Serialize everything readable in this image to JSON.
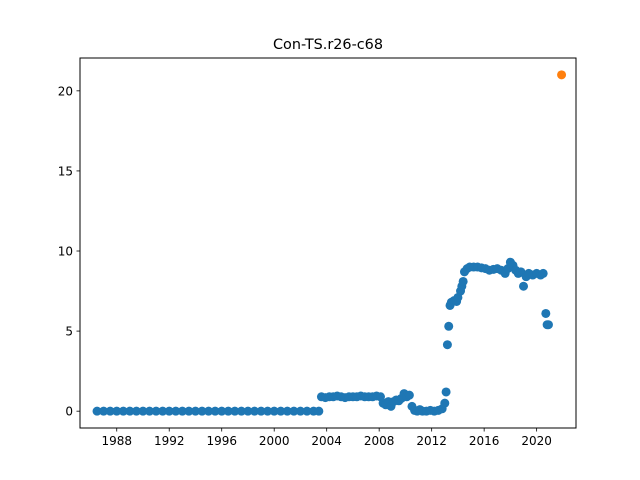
{
  "chart_data": {
    "type": "scatter",
    "title": "Con-TS.r26-c68",
    "xlabel": "",
    "ylabel": "",
    "xlim": [
      1985.2,
      2023.0
    ],
    "ylim": [
      -1.05,
      22.05
    ],
    "x_ticks": [
      1988,
      1992,
      1996,
      2000,
      2004,
      2008,
      2012,
      2016,
      2020
    ],
    "x_tick_labels": [
      "1988",
      "1992",
      "1996",
      "2000",
      "2004",
      "2008",
      "2012",
      "2016",
      "2020"
    ],
    "y_ticks": [
      0,
      5,
      10,
      15,
      20
    ],
    "y_tick_labels": [
      "0",
      "5",
      "10",
      "15",
      "20"
    ],
    "grid": false,
    "series": [
      {
        "color": "#1f77b4",
        "points": [
          [
            1986.5,
            0.0
          ],
          [
            1987.0,
            0.0
          ],
          [
            1987.5,
            0.0
          ],
          [
            1988.0,
            0.0
          ],
          [
            1988.5,
            0.0
          ],
          [
            1989.0,
            0.0
          ],
          [
            1989.5,
            0.0
          ],
          [
            1990.0,
            0.0
          ],
          [
            1990.5,
            0.0
          ],
          [
            1991.0,
            0.0
          ],
          [
            1991.5,
            0.0
          ],
          [
            1992.0,
            0.0
          ],
          [
            1992.5,
            0.0
          ],
          [
            1993.0,
            0.0
          ],
          [
            1993.5,
            0.0
          ],
          [
            1994.0,
            0.0
          ],
          [
            1994.5,
            0.0
          ],
          [
            1995.0,
            0.0
          ],
          [
            1995.5,
            0.0
          ],
          [
            1996.0,
            0.0
          ],
          [
            1996.5,
            0.0
          ],
          [
            1997.0,
            0.0
          ],
          [
            1997.5,
            0.0
          ],
          [
            1998.0,
            0.0
          ],
          [
            1998.5,
            0.0
          ],
          [
            1999.0,
            0.0
          ],
          [
            1999.5,
            0.0
          ],
          [
            2000.0,
            0.0
          ],
          [
            2000.5,
            0.0
          ],
          [
            2001.0,
            0.0
          ],
          [
            2001.5,
            0.0
          ],
          [
            2002.0,
            0.0
          ],
          [
            2002.5,
            0.0
          ],
          [
            2003.0,
            0.0
          ],
          [
            2003.4,
            0.0
          ],
          [
            2003.6,
            0.9
          ],
          [
            2003.9,
            0.85
          ],
          [
            2004.2,
            0.9
          ],
          [
            2004.5,
            0.9
          ],
          [
            2004.8,
            0.95
          ],
          [
            2005.1,
            0.9
          ],
          [
            2005.4,
            0.85
          ],
          [
            2005.7,
            0.9
          ],
          [
            2006.0,
            0.9
          ],
          [
            2006.3,
            0.9
          ],
          [
            2006.6,
            0.95
          ],
          [
            2006.9,
            0.9
          ],
          [
            2007.2,
            0.9
          ],
          [
            2007.5,
            0.9
          ],
          [
            2007.8,
            0.95
          ],
          [
            2008.1,
            0.9
          ],
          [
            2008.3,
            0.5
          ],
          [
            2008.5,
            0.4
          ],
          [
            2008.7,
            0.6
          ],
          [
            2008.9,
            0.3
          ],
          [
            2009.1,
            0.6
          ],
          [
            2009.3,
            0.7
          ],
          [
            2009.5,
            0.65
          ],
          [
            2009.7,
            0.8
          ],
          [
            2009.9,
            1.1
          ],
          [
            2010.1,
            0.9
          ],
          [
            2010.3,
            1.0
          ],
          [
            2010.5,
            0.3
          ],
          [
            2010.7,
            0.05
          ],
          [
            2010.9,
            0.0
          ],
          [
            2011.1,
            0.1
          ],
          [
            2011.3,
            0.0
          ],
          [
            2011.6,
            0.0
          ],
          [
            2011.9,
            0.05
          ],
          [
            2012.2,
            0.0
          ],
          [
            2012.5,
            0.05
          ],
          [
            2012.8,
            0.15
          ],
          [
            2013.0,
            0.5
          ],
          [
            2013.1,
            1.2
          ],
          [
            2013.2,
            4.15
          ],
          [
            2013.3,
            5.3
          ],
          [
            2013.4,
            6.6
          ],
          [
            2013.5,
            6.8
          ],
          [
            2013.7,
            6.9
          ],
          [
            2013.9,
            6.85
          ],
          [
            2014.0,
            7.1
          ],
          [
            2014.2,
            7.5
          ],
          [
            2014.3,
            7.8
          ],
          [
            2014.4,
            8.1
          ],
          [
            2014.5,
            8.7
          ],
          [
            2014.7,
            8.9
          ],
          [
            2014.9,
            9.0
          ],
          [
            2015.2,
            9.0
          ],
          [
            2015.5,
            9.0
          ],
          [
            2015.8,
            8.95
          ],
          [
            2016.1,
            8.9
          ],
          [
            2016.4,
            8.8
          ],
          [
            2016.7,
            8.85
          ],
          [
            2017.0,
            8.9
          ],
          [
            2017.3,
            8.8
          ],
          [
            2017.6,
            8.6
          ],
          [
            2017.8,
            8.9
          ],
          [
            2018.0,
            9.3
          ],
          [
            2018.2,
            9.1
          ],
          [
            2018.4,
            8.8
          ],
          [
            2018.6,
            8.6
          ],
          [
            2018.8,
            8.7
          ],
          [
            2019.0,
            7.8
          ],
          [
            2019.2,
            8.4
          ],
          [
            2019.4,
            8.6
          ],
          [
            2019.7,
            8.5
          ],
          [
            2020.0,
            8.6
          ],
          [
            2020.3,
            8.5
          ],
          [
            2020.5,
            8.6
          ],
          [
            2020.7,
            6.1
          ],
          [
            2020.8,
            5.4
          ],
          [
            2020.9,
            5.4
          ]
        ]
      },
      {
        "color": "#ff7f0e",
        "points": [
          [
            2021.9,
            21.0
          ]
        ]
      }
    ]
  }
}
